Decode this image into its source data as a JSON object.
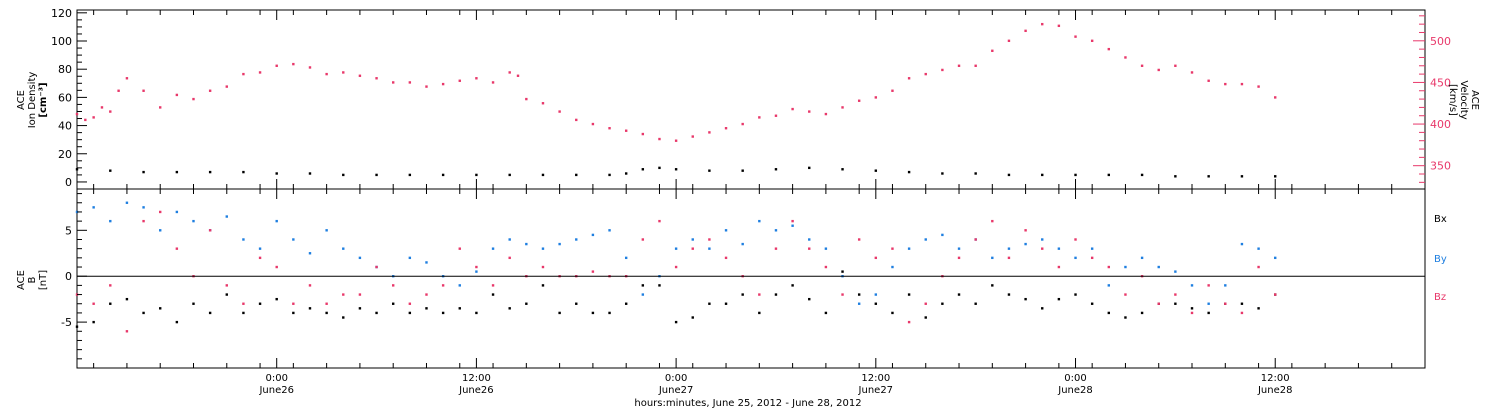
{
  "colors": {
    "black": "#000000",
    "red": "#e8386a",
    "blue": "#1f7fe0"
  },
  "time_axis": {
    "title": "hours:minutes, June 25, 2012 - June 28, 2012",
    "range_hours": [
      0,
      81
    ],
    "ticks": [
      {
        "h": 12,
        "time": "0:00",
        "date": "June26"
      },
      {
        "h": 24,
        "time": "12:00",
        "date": "June26"
      },
      {
        "h": 36,
        "time": "0:00",
        "date": "June27"
      },
      {
        "h": 48,
        "time": "12:00",
        "date": "June27"
      },
      {
        "h": 60,
        "time": "0:00",
        "date": "June28"
      },
      {
        "h": 72,
        "time": "12:00",
        "date": "June28"
      }
    ]
  },
  "chart_data": [
    {
      "type": "scatter",
      "title": "",
      "left_axis": {
        "label_lines": [
          "ACE",
          "Ion Density",
          "[cm⁻³]"
        ],
        "range": [
          -5,
          122
        ],
        "ticks": [
          0,
          20,
          40,
          60,
          80,
          100,
          120
        ]
      },
      "right_axis": {
        "label_lines": [
          "ACE",
          "Velocity",
          "[km/s]"
        ],
        "range": [
          322,
          537
        ],
        "ticks": [
          350,
          400,
          450,
          500
        ]
      },
      "series": [
        {
          "color": "#000000",
          "axis": "left",
          "x": [
            0,
            2,
            4,
            6,
            8,
            10,
            12,
            14,
            16,
            18,
            20,
            22,
            24,
            26,
            28,
            30,
            32,
            33,
            34,
            35,
            36,
            38,
            40,
            42,
            44,
            46,
            48,
            50,
            52,
            54,
            56,
            58,
            60,
            62,
            64,
            66,
            68,
            70,
            72
          ],
          "y": [
            9,
            8,
            7,
            7,
            7,
            7,
            6,
            6,
            5,
            5,
            5,
            5,
            5,
            5,
            5,
            5,
            5,
            6,
            9,
            10,
            9,
            8,
            8,
            9,
            10,
            9,
            8,
            7,
            6,
            6,
            5,
            5,
            5,
            5,
            5,
            4,
            4,
            4,
            4
          ]
        },
        {
          "color": "#e8386a",
          "axis": "right",
          "x": [
            0,
            0.5,
            1,
            1.5,
            2,
            2.5,
            3,
            4,
            5,
            6,
            7,
            8,
            9,
            10,
            11,
            12,
            13,
            14,
            15,
            16,
            17,
            18,
            19,
            20,
            21,
            22,
            23,
            24,
            25,
            26,
            26.5,
            27,
            28,
            29,
            30,
            31,
            32,
            33,
            34,
            35,
            36,
            37,
            38,
            39,
            40,
            41,
            42,
            43,
            44,
            45,
            46,
            47,
            48,
            49,
            50,
            51,
            52,
            53,
            54,
            55,
            56,
            57,
            58,
            59,
            60,
            61,
            62,
            63,
            64,
            65,
            66,
            67,
            68,
            69,
            70,
            71,
            72
          ],
          "y": [
            412,
            405,
            408,
            420,
            415,
            440,
            455,
            440,
            420,
            435,
            430,
            440,
            445,
            460,
            462,
            470,
            472,
            468,
            460,
            462,
            458,
            455,
            450,
            450,
            445,
            448,
            452,
            455,
            450,
            462,
            458,
            430,
            425,
            415,
            405,
            400,
            395,
            392,
            388,
            382,
            380,
            385,
            390,
            395,
            400,
            408,
            410,
            418,
            415,
            412,
            420,
            428,
            432,
            440,
            455,
            460,
            465,
            470,
            470,
            488,
            500,
            512,
            520,
            518,
            505,
            500,
            490,
            480,
            470,
            465,
            470,
            462,
            452,
            448,
            448,
            445,
            432
          ]
        }
      ]
    },
    {
      "type": "scatter",
      "title": "",
      "left_axis": {
        "label_lines": [
          "ACE",
          "B",
          "[nT]"
        ],
        "range": [
          -10,
          9.5
        ],
        "ticks": [
          -5,
          0,
          5
        ]
      },
      "zero_line": true,
      "series": [
        {
          "name": "Bx",
          "color": "#000000",
          "x": [
            0,
            1,
            2,
            3,
            4,
            5,
            6,
            7,
            8,
            9,
            10,
            11,
            12,
            13,
            14,
            15,
            16,
            17,
            18,
            19,
            20,
            21,
            22,
            23,
            24,
            25,
            26,
            27,
            28,
            29,
            30,
            31,
            32,
            33,
            34,
            35,
            36,
            37,
            38,
            39,
            40,
            41,
            42,
            43,
            44,
            45,
            46,
            47,
            48,
            49,
            50,
            51,
            52,
            53,
            54,
            55,
            56,
            57,
            58,
            59,
            60,
            61,
            62,
            63,
            64,
            65,
            66,
            67,
            68,
            69,
            70,
            71,
            72
          ],
          "y": [
            -5.5,
            -5,
            -3,
            -2.5,
            -4,
            -3.5,
            -5,
            -3,
            -4,
            -2,
            -4,
            -3,
            -2.5,
            -4,
            -3.5,
            -4,
            -4.5,
            -3.5,
            -4,
            -3,
            -4,
            -3.5,
            -4,
            -3.5,
            -4,
            -2,
            -3.5,
            -3,
            -1,
            -4,
            -3,
            -4,
            -4,
            -3,
            -1,
            -1,
            -5,
            -4.5,
            -3,
            -3,
            -2,
            -4,
            -2,
            -1,
            -2.5,
            -4,
            0.5,
            -2,
            -3,
            -4,
            -2,
            -4.5,
            -3,
            -2,
            -3,
            -1,
            -2,
            -2.5,
            -3.5,
            -2.5,
            -2,
            -3,
            -4,
            -4.5,
            -4,
            -3,
            -3,
            -3.5,
            -4,
            -3,
            -3,
            -3.5,
            -2
          ]
        },
        {
          "name": "By",
          "color": "#1f7fe0",
          "x": [
            0,
            1,
            2,
            3,
            4,
            5,
            6,
            7,
            8,
            9,
            10,
            11,
            12,
            13,
            14,
            15,
            16,
            17,
            18,
            19,
            20,
            21,
            22,
            23,
            24,
            25,
            26,
            27,
            28,
            29,
            30,
            31,
            32,
            33,
            34,
            35,
            36,
            37,
            38,
            39,
            40,
            41,
            42,
            43,
            44,
            45,
            46,
            47,
            48,
            49,
            50,
            51,
            52,
            53,
            54,
            55,
            56,
            57,
            58,
            59,
            60,
            61,
            62,
            63,
            64,
            65,
            66,
            67,
            68,
            69,
            70,
            71,
            72
          ],
          "y": [
            7,
            7.5,
            6,
            8,
            7.5,
            5,
            7,
            6,
            5,
            6.5,
            4,
            3,
            6,
            4,
            2.5,
            5,
            3,
            2,
            1,
            0,
            2,
            1.5,
            0,
            -1,
            0.5,
            3,
            4,
            3.5,
            3,
            3.5,
            4,
            4.5,
            5,
            2,
            -2,
            0,
            3,
            4,
            3,
            5,
            3.5,
            6,
            5,
            5.5,
            4,
            3,
            0,
            -3,
            -2,
            1,
            3,
            4,
            4.5,
            3,
            4,
            2,
            3,
            3.5,
            4,
            3,
            2,
            3,
            -1,
            1,
            2,
            1,
            0.5,
            -1,
            -3,
            -1,
            3.5,
            3,
            2
          ]
        },
        {
          "name": "Bz",
          "color": "#e8386a",
          "x": [
            0,
            1,
            2,
            3,
            4,
            5,
            6,
            7,
            8,
            9,
            10,
            11,
            12,
            13,
            14,
            15,
            16,
            17,
            18,
            19,
            20,
            21,
            22,
            23,
            24,
            25,
            26,
            27,
            28,
            29,
            30,
            31,
            32,
            33,
            34,
            35,
            36,
            37,
            38,
            39,
            40,
            41,
            42,
            43,
            44,
            45,
            46,
            47,
            48,
            49,
            50,
            51,
            52,
            53,
            54,
            55,
            56,
            57,
            58,
            59,
            60,
            61,
            62,
            63,
            64,
            65,
            66,
            67,
            68,
            69,
            70,
            71,
            72
          ],
          "y": [
            -2,
            -3,
            -1,
            -6,
            6,
            7,
            3,
            0,
            5,
            -1,
            -3,
            2,
            1,
            -3,
            -1,
            -3,
            -2,
            -2,
            1,
            -1,
            -3,
            -2,
            -1,
            3,
            1,
            -1,
            2,
            0,
            1,
            0,
            0,
            0.5,
            0,
            0,
            4,
            6,
            1,
            3,
            4,
            2,
            0,
            -2,
            3,
            6,
            3,
            1,
            -2,
            4,
            2,
            3,
            -5,
            -3,
            0,
            2,
            4,
            6,
            2,
            5,
            3,
            1,
            4,
            2,
            1,
            -2,
            0,
            -3,
            -2,
            -4,
            -1,
            -3,
            -4,
            1,
            -2
          ]
        }
      ]
    }
  ]
}
